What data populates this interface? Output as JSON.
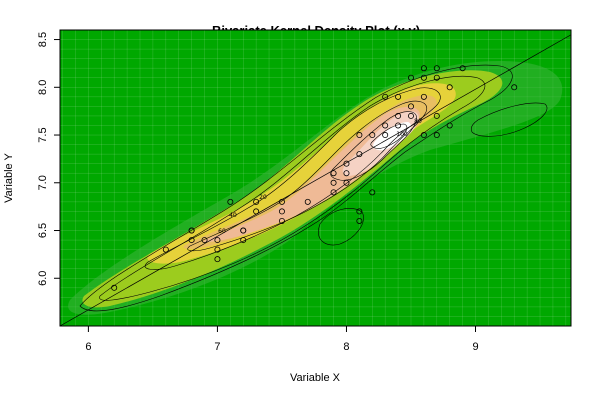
{
  "chart_data": {
    "type": "scatter",
    "title": "Bivariate Kernel Density Plot (x,y)",
    "xlabel": "Variable X",
    "ylabel": "Variable Y",
    "xlim": [
      5.78,
      9.74
    ],
    "ylim": [
      5.5,
      8.6
    ],
    "x_ticks": [
      6,
      7,
      8,
      9
    ],
    "y_ticks": [
      6.0,
      6.5,
      7.0,
      7.5,
      8.0,
      8.5
    ],
    "x_tick_labels": [
      "6",
      "7",
      "8",
      "9"
    ],
    "y_tick_labels": [
      "6.0",
      "6.5",
      "7.0",
      "7.5",
      "8.0",
      "8.5"
    ],
    "grid": true,
    "legend": "none",
    "background_color": "#00a800",
    "contour_labels": [
      "20",
      "60",
      "40",
      "100",
      "80"
    ],
    "regression_line": {
      "from": [
        5.78,
        5.5
      ],
      "to": [
        9.74,
        8.55
      ]
    },
    "points": [
      {
        "x": 6.2,
        "y": 5.9
      },
      {
        "x": 6.6,
        "y": 6.3
      },
      {
        "x": 6.8,
        "y": 6.5
      },
      {
        "x": 6.8,
        "y": 6.5
      },
      {
        "x": 6.8,
        "y": 6.4
      },
      {
        "x": 6.9,
        "y": 6.4
      },
      {
        "x": 7.0,
        "y": 6.2
      },
      {
        "x": 7.0,
        "y": 6.3
      },
      {
        "x": 7.0,
        "y": 6.4
      },
      {
        "x": 7.1,
        "y": 6.8
      },
      {
        "x": 7.2,
        "y": 6.5
      },
      {
        "x": 7.2,
        "y": 6.5
      },
      {
        "x": 7.2,
        "y": 6.4
      },
      {
        "x": 7.3,
        "y": 6.7
      },
      {
        "x": 7.3,
        "y": 6.8
      },
      {
        "x": 7.5,
        "y": 6.6
      },
      {
        "x": 7.5,
        "y": 6.7
      },
      {
        "x": 7.5,
        "y": 6.8
      },
      {
        "x": 7.7,
        "y": 6.8
      },
      {
        "x": 7.9,
        "y": 6.9
      },
      {
        "x": 7.9,
        "y": 7.0
      },
      {
        "x": 7.9,
        "y": 7.1
      },
      {
        "x": 8.0,
        "y": 7.0
      },
      {
        "x": 8.0,
        "y": 7.1
      },
      {
        "x": 8.0,
        "y": 7.2
      },
      {
        "x": 8.1,
        "y": 6.6
      },
      {
        "x": 8.1,
        "y": 6.7
      },
      {
        "x": 8.1,
        "y": 7.3
      },
      {
        "x": 8.1,
        "y": 7.5
      },
      {
        "x": 8.2,
        "y": 6.9
      },
      {
        "x": 8.2,
        "y": 7.5
      },
      {
        "x": 8.3,
        "y": 7.5
      },
      {
        "x": 8.3,
        "y": 7.6
      },
      {
        "x": 8.3,
        "y": 7.9
      },
      {
        "x": 8.4,
        "y": 7.6
      },
      {
        "x": 8.4,
        "y": 7.7
      },
      {
        "x": 8.4,
        "y": 7.9
      },
      {
        "x": 8.5,
        "y": 7.7
      },
      {
        "x": 8.5,
        "y": 7.8
      },
      {
        "x": 8.5,
        "y": 8.1
      },
      {
        "x": 8.6,
        "y": 7.5
      },
      {
        "x": 8.6,
        "y": 7.9
      },
      {
        "x": 8.6,
        "y": 8.1
      },
      {
        "x": 8.6,
        "y": 8.2
      },
      {
        "x": 8.7,
        "y": 7.5
      },
      {
        "x": 8.7,
        "y": 7.7
      },
      {
        "x": 8.7,
        "y": 8.1
      },
      {
        "x": 8.7,
        "y": 8.2
      },
      {
        "x": 8.8,
        "y": 7.6
      },
      {
        "x": 8.8,
        "y": 8.0
      },
      {
        "x": 8.9,
        "y": 8.2
      },
      {
        "x": 9.3,
        "y": 8.0
      }
    ]
  }
}
